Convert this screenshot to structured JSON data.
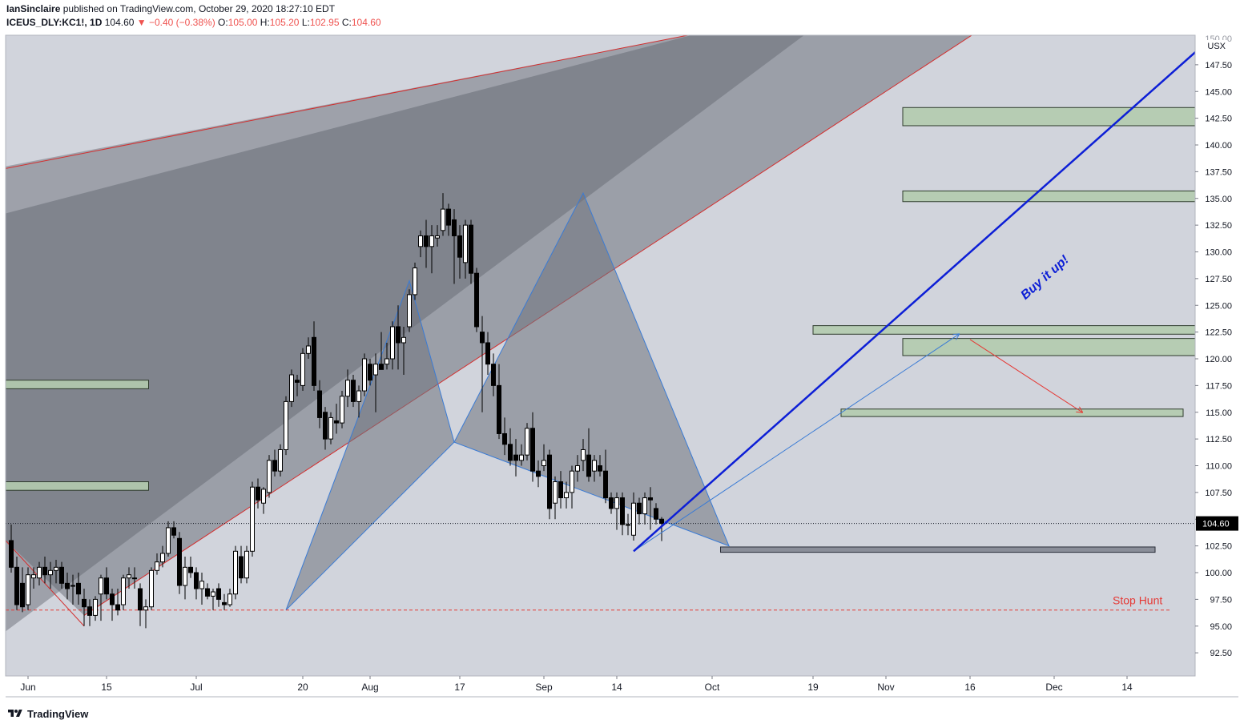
{
  "header": {
    "author": "IanSinclaire",
    "published_text": "published on TradingView.com, October 29, 2020 18:27:10 EDT",
    "symbol": "ICEUS_DLY:KC1!, 1D",
    "last": "104.60",
    "change": "▼ −0.40 (−0.38%)",
    "o_label": "O:",
    "o_value": "105.00",
    "h_label": "H:",
    "h_value": "105.20",
    "l_label": "L:",
    "l_value": "102.95",
    "c_label": "C:",
    "c_value": "104.60"
  },
  "footer": {
    "brand": "TradingView"
  },
  "colors": {
    "plot_bg": "#d1d4dc",
    "harmonic_fill": "#6f737e",
    "channel_line": "#d32f2f",
    "zone_fill": "#b3cbae",
    "zone_border": "#2e3b2c",
    "pattern_line": "#3a7bd5",
    "buy_line": "#0d1fd6",
    "stop_line": "#e53935",
    "candle_up": "#ffffff",
    "candle_down": "#000000",
    "price_tag_bg": "#000000"
  },
  "chart_data": {
    "type": "candlestick",
    "title": "ICEUS_DLY:KC1!, 1D",
    "currency": "USX",
    "ylim": [
      90.8,
      150.0
    ],
    "y_ticks": [
      92.5,
      95.0,
      97.5,
      100.0,
      102.5,
      105.0,
      107.5,
      110.0,
      112.5,
      115.0,
      117.5,
      120.0,
      122.5,
      125.0,
      127.5,
      130.0,
      132.5,
      135.0,
      137.5,
      140.0,
      142.5,
      145.0,
      147.5
    ],
    "top_tick_label": "150.00",
    "x_ticks": [
      {
        "label": "Jun",
        "day": 1
      },
      {
        "label": "15",
        "day": 15
      },
      {
        "label": "Jul",
        "day": 31
      },
      {
        "label": "20",
        "day": 50
      },
      {
        "label": "Aug",
        "day": 62
      },
      {
        "label": "17",
        "day": 78
      },
      {
        "label": "Sep",
        "day": 93
      },
      {
        "label": "14",
        "day": 106
      },
      {
        "label": "Oct",
        "day": 123
      },
      {
        "label": "19",
        "day": 141
      },
      {
        "label": "Nov",
        "day": 154
      },
      {
        "label": "16",
        "day": 169
      },
      {
        "label": "Dec",
        "day": 184
      },
      {
        "label": "14",
        "day": 197
      }
    ],
    "candles": [
      {
        "day": -2,
        "o": 103.0,
        "h": 104.5,
        "l": 100.0,
        "c": 100.5
      },
      {
        "day": -1,
        "o": 100.5,
        "h": 101.5,
        "l": 96.5,
        "c": 97.0
      },
      {
        "day": 0,
        "o": 99.0,
        "h": 100.5,
        "l": 96.3,
        "c": 96.8
      },
      {
        "day": 1,
        "o": 97.0,
        "h": 100.5,
        "l": 96.5,
        "c": 99.8
      },
      {
        "day": 2,
        "o": 99.5,
        "h": 100.5,
        "l": 98.5,
        "c": 99.8
      },
      {
        "day": 3,
        "o": 99.5,
        "h": 101.0,
        "l": 98.8,
        "c": 100.5
      },
      {
        "day": 4,
        "o": 100.5,
        "h": 101.5,
        "l": 99.0,
        "c": 99.8
      },
      {
        "day": 5,
        "o": 99.8,
        "h": 101.0,
        "l": 98.5,
        "c": 100.2
      },
      {
        "day": 6,
        "o": 100.2,
        "h": 101.2,
        "l": 99.0,
        "c": 100.5
      },
      {
        "day": 7,
        "o": 100.5,
        "h": 101.0,
        "l": 98.5,
        "c": 99.0
      },
      {
        "day": 8,
        "o": 99.0,
        "h": 100.0,
        "l": 97.5,
        "c": 98.5
      },
      {
        "day": 9,
        "o": 98.8,
        "h": 99.8,
        "l": 97.0,
        "c": 98.8
      },
      {
        "day": 10,
        "o": 99.0,
        "h": 100.0,
        "l": 97.0,
        "c": 98.0
      },
      {
        "day": 11,
        "o": 97.5,
        "h": 98.5,
        "l": 95.0,
        "c": 96.8
      },
      {
        "day": 12,
        "o": 96.8,
        "h": 97.5,
        "l": 95.0,
        "c": 96.0
      },
      {
        "day": 13,
        "o": 96.0,
        "h": 97.8,
        "l": 95.5,
        "c": 97.5
      },
      {
        "day": 14,
        "o": 98.0,
        "h": 99.8,
        "l": 95.5,
        "c": 99.5
      },
      {
        "day": 15,
        "o": 99.5,
        "h": 100.5,
        "l": 97.5,
        "c": 98.0
      },
      {
        "day": 16,
        "o": 98.0,
        "h": 98.5,
        "l": 95.5,
        "c": 97.0
      },
      {
        "day": 17,
        "o": 97.0,
        "h": 98.5,
        "l": 96.0,
        "c": 96.5
      },
      {
        "day": 18,
        "o": 97.0,
        "h": 99.8,
        "l": 96.5,
        "c": 99.5
      },
      {
        "day": 19,
        "o": 99.5,
        "h": 100.5,
        "l": 98.5,
        "c": 99.8
      },
      {
        "day": 20,
        "o": 99.5,
        "h": 100.5,
        "l": 98.5,
        "c": 99.5
      },
      {
        "day": 21,
        "o": 98.5,
        "h": 99.0,
        "l": 95.0,
        "c": 96.5
      },
      {
        "day": 22,
        "o": 96.5,
        "h": 97.5,
        "l": 94.8,
        "c": 96.8
      },
      {
        "day": 23,
        "o": 96.8,
        "h": 100.5,
        "l": 96.5,
        "c": 100.2
      },
      {
        "day": 24,
        "o": 100.2,
        "h": 101.8,
        "l": 99.8,
        "c": 101.0
      },
      {
        "day": 25,
        "o": 101.0,
        "h": 102.5,
        "l": 100.5,
        "c": 101.8
      },
      {
        "day": 26,
        "o": 101.8,
        "h": 104.8,
        "l": 101.5,
        "c": 104.2
      },
      {
        "day": 27,
        "o": 104.2,
        "h": 104.8,
        "l": 103.2,
        "c": 103.5
      },
      {
        "day": 28,
        "o": 103.2,
        "h": 103.8,
        "l": 98.0,
        "c": 98.8
      },
      {
        "day": 29,
        "o": 98.8,
        "h": 101.5,
        "l": 97.5,
        "c": 100.5
      },
      {
        "day": 30,
        "o": 100.5,
        "h": 101.5,
        "l": 99.5,
        "c": 100.0
      },
      {
        "day": 31,
        "o": 100.0,
        "h": 100.5,
        "l": 97.5,
        "c": 98.5
      },
      {
        "day": 32,
        "o": 98.5,
        "h": 100.0,
        "l": 97.0,
        "c": 99.2
      },
      {
        "day": 33,
        "o": 98.5,
        "h": 99.0,
        "l": 97.5,
        "c": 97.8
      },
      {
        "day": 34,
        "o": 97.8,
        "h": 98.5,
        "l": 96.5,
        "c": 98.2
      },
      {
        "day": 35,
        "o": 98.5,
        "h": 99.0,
        "l": 96.8,
        "c": 97.5
      },
      {
        "day": 36,
        "o": 97.2,
        "h": 98.0,
        "l": 96.5,
        "c": 97.0
      },
      {
        "day": 37,
        "o": 97.0,
        "h": 98.5,
        "l": 96.8,
        "c": 98.0
      },
      {
        "day": 38,
        "o": 98.0,
        "h": 102.5,
        "l": 97.5,
        "c": 102.0
      },
      {
        "day": 39,
        "o": 101.5,
        "h": 102.5,
        "l": 99.0,
        "c": 99.5
      },
      {
        "day": 40,
        "o": 99.5,
        "h": 102.5,
        "l": 99.0,
        "c": 102.0
      },
      {
        "day": 41,
        "o": 102.0,
        "h": 108.5,
        "l": 101.5,
        "c": 108.0
      },
      {
        "day": 42,
        "o": 108.0,
        "h": 108.8,
        "l": 106.0,
        "c": 106.8
      },
      {
        "day": 43,
        "o": 106.5,
        "h": 108.0,
        "l": 105.5,
        "c": 107.8
      },
      {
        "day": 44,
        "o": 107.5,
        "h": 111.0,
        "l": 107.0,
        "c": 110.5
      },
      {
        "day": 45,
        "o": 110.5,
        "h": 111.5,
        "l": 109.0,
        "c": 109.5
      },
      {
        "day": 46,
        "o": 109.5,
        "h": 112.0,
        "l": 109.0,
        "c": 111.5
      },
      {
        "day": 47,
        "o": 111.5,
        "h": 116.5,
        "l": 111.0,
        "c": 116.0
      },
      {
        "day": 48,
        "o": 116.0,
        "h": 119.0,
        "l": 115.5,
        "c": 118.5
      },
      {
        "day": 49,
        "o": 118.0,
        "h": 118.5,
        "l": 116.5,
        "c": 117.8
      },
      {
        "day": 50,
        "o": 117.5,
        "h": 121.0,
        "l": 117.0,
        "c": 120.5
      },
      {
        "day": 51,
        "o": 120.5,
        "h": 122.0,
        "l": 120.0,
        "c": 121.2
      },
      {
        "day": 52,
        "o": 122.0,
        "h": 123.5,
        "l": 117.0,
        "c": 117.5
      },
      {
        "day": 53,
        "o": 117.0,
        "h": 118.0,
        "l": 113.5,
        "c": 114.5
      },
      {
        "day": 54,
        "o": 115.0,
        "h": 115.5,
        "l": 111.5,
        "c": 112.5
      },
      {
        "day": 55,
        "o": 112.5,
        "h": 115.0,
        "l": 112.0,
        "c": 114.5
      },
      {
        "day": 56,
        "o": 114.2,
        "h": 115.8,
        "l": 113.0,
        "c": 114.0
      },
      {
        "day": 57,
        "o": 114.0,
        "h": 117.0,
        "l": 113.5,
        "c": 116.5
      },
      {
        "day": 58,
        "o": 116.5,
        "h": 119.0,
        "l": 115.5,
        "c": 118.0
      },
      {
        "day": 59,
        "o": 118.0,
        "h": 118.5,
        "l": 115.5,
        "c": 116.0
      },
      {
        "day": 60,
        "o": 116.0,
        "h": 117.5,
        "l": 114.5,
        "c": 117.0
      },
      {
        "day": 61,
        "o": 117.0,
        "h": 120.5,
        "l": 116.5,
        "c": 120.0
      },
      {
        "day": 62,
        "o": 119.5,
        "h": 120.0,
        "l": 117.5,
        "c": 118.0
      },
      {
        "day": 63,
        "o": 118.5,
        "h": 120.5,
        "l": 115.0,
        "c": 119.5
      },
      {
        "day": 64,
        "o": 119.5,
        "h": 122.5,
        "l": 119.0,
        "c": 119.0
      },
      {
        "day": 65,
        "o": 119.5,
        "h": 121.5,
        "l": 119.0,
        "c": 120.0
      },
      {
        "day": 66,
        "o": 120.0,
        "h": 123.5,
        "l": 119.0,
        "c": 123.0
      },
      {
        "day": 67,
        "o": 123.0,
        "h": 125.0,
        "l": 119.0,
        "c": 121.5
      },
      {
        "day": 68,
        "o": 121.5,
        "h": 123.0,
        "l": 118.5,
        "c": 122.0
      },
      {
        "day": 69,
        "o": 123.0,
        "h": 126.5,
        "l": 122.5,
        "c": 126.0
      },
      {
        "day": 70,
        "o": 126.0,
        "h": 129.0,
        "l": 125.5,
        "c": 128.5
      },
      {
        "day": 71,
        "o": 130.5,
        "h": 132.0,
        "l": 129.5,
        "c": 131.5
      },
      {
        "day": 72,
        "o": 131.5,
        "h": 133.0,
        "l": 128.5,
        "c": 130.5
      },
      {
        "day": 73,
        "o": 130.5,
        "h": 132.5,
        "l": 128.0,
        "c": 131.5
      },
      {
        "day": 74,
        "o": 131.3,
        "h": 132.5,
        "l": 130.5,
        "c": 131.5
      },
      {
        "day": 75,
        "o": 132.0,
        "h": 135.5,
        "l": 131.5,
        "c": 134.0
      },
      {
        "day": 76,
        "o": 134.0,
        "h": 134.5,
        "l": 131.5,
        "c": 132.5
      },
      {
        "day": 77,
        "o": 133.0,
        "h": 134.0,
        "l": 127.0,
        "c": 131.5
      },
      {
        "day": 78,
        "o": 131.5,
        "h": 132.5,
        "l": 127.5,
        "c": 129.5
      },
      {
        "day": 79,
        "o": 129.0,
        "h": 133.0,
        "l": 127.5,
        "c": 132.5
      },
      {
        "day": 80,
        "o": 132.5,
        "h": 133.0,
        "l": 127.0,
        "c": 128.0
      },
      {
        "day": 81,
        "o": 128.0,
        "h": 128.5,
        "l": 122.5,
        "c": 123.0
      },
      {
        "day": 82,
        "o": 122.5,
        "h": 124.0,
        "l": 115.0,
        "c": 121.5
      },
      {
        "day": 83,
        "o": 121.5,
        "h": 122.5,
        "l": 118.5,
        "c": 119.5
      },
      {
        "day": 84,
        "o": 119.5,
        "h": 120.5,
        "l": 116.5,
        "c": 117.5
      },
      {
        "day": 85,
        "o": 117.5,
        "h": 119.5,
        "l": 112.5,
        "c": 113.0
      },
      {
        "day": 86,
        "o": 113.0,
        "h": 114.5,
        "l": 111.0,
        "c": 112.0
      },
      {
        "day": 87,
        "o": 112.0,
        "h": 113.5,
        "l": 110.0,
        "c": 110.5
      },
      {
        "day": 88,
        "o": 111.0,
        "h": 112.5,
        "l": 109.0,
        "c": 110.5
      },
      {
        "day": 89,
        "o": 110.5,
        "h": 112.0,
        "l": 110.0,
        "c": 111.0
      },
      {
        "day": 90,
        "o": 111.0,
        "h": 114.0,
        "l": 110.5,
        "c": 113.5
      },
      {
        "day": 91,
        "o": 113.5,
        "h": 115.0,
        "l": 108.5,
        "c": 109.5
      },
      {
        "day": 92,
        "o": 109.5,
        "h": 110.5,
        "l": 108.0,
        "c": 109.0
      },
      {
        "day": 93,
        "o": 110.0,
        "h": 112.0,
        "l": 109.5,
        "c": 110.5
      },
      {
        "day": 94,
        "o": 111.0,
        "h": 111.5,
        "l": 105.0,
        "c": 106.0
      },
      {
        "day": 95,
        "o": 106.5,
        "h": 109.0,
        "l": 105.0,
        "c": 108.5
      },
      {
        "day": 96,
        "o": 108.5,
        "h": 109.5,
        "l": 106.0,
        "c": 107.0
      },
      {
        "day": 97,
        "o": 107.0,
        "h": 108.5,
        "l": 106.0,
        "c": 107.5
      },
      {
        "day": 98,
        "o": 107.5,
        "h": 110.0,
        "l": 106.0,
        "c": 109.5
      },
      {
        "day": 99,
        "o": 109.5,
        "h": 111.0,
        "l": 108.5,
        "c": 110.0
      },
      {
        "day": 100,
        "o": 110.5,
        "h": 112.5,
        "l": 109.5,
        "c": 111.5
      },
      {
        "day": 101,
        "o": 111.0,
        "h": 113.5,
        "l": 108.5,
        "c": 109.0
      },
      {
        "day": 102,
        "o": 109.5,
        "h": 111.0,
        "l": 108.5,
        "c": 110.5
      },
      {
        "day": 103,
        "o": 110.0,
        "h": 111.0,
        "l": 109.0,
        "c": 109.5
      },
      {
        "day": 104,
        "o": 109.5,
        "h": 111.5,
        "l": 106.5,
        "c": 107.0
      },
      {
        "day": 105,
        "o": 107.0,
        "h": 107.5,
        "l": 105.5,
        "c": 106.0
      },
      {
        "day": 106,
        "o": 106.0,
        "h": 107.5,
        "l": 104.0,
        "c": 107.0
      },
      {
        "day": 107,
        "o": 107.0,
        "h": 107.5,
        "l": 103.5,
        "c": 104.5
      },
      {
        "day": 108,
        "o": 104.5,
        "h": 105.5,
        "l": 103.5,
        "c": 104.5
      },
      {
        "day": 109,
        "o": 103.5,
        "h": 107.5,
        "l": 103.0,
        "c": 106.5
      },
      {
        "day": 110,
        "o": 106.5,
        "h": 107.0,
        "l": 104.5,
        "c": 105.5
      },
      {
        "day": 111,
        "o": 105.5,
        "h": 107.5,
        "l": 104.5,
        "c": 107.0
      },
      {
        "day": 112,
        "o": 107.0,
        "h": 108.0,
        "l": 104.0,
        "c": 106.8
      },
      {
        "day": 113,
        "o": 106.0,
        "h": 106.5,
        "l": 104.5,
        "c": 105.0
      },
      {
        "day": 114,
        "o": 105.0,
        "h": 105.2,
        "l": 102.95,
        "c": 104.6
      }
    ],
    "last_price": 104.6,
    "last_price_label": "104.60",
    "annotations": [
      {
        "text": "Buy it up!",
        "type": "trend-arrow",
        "from": {
          "day": 109,
          "price": 102.0
        },
        "to": {
          "day": 212,
          "price": 150.0
        }
      },
      {
        "text": "Stop Hunt",
        "type": "horizontal-dashed",
        "price": 96.5
      },
      {
        "type": "target-zone",
        "price_low": 141.8,
        "price_high": 143.5
      },
      {
        "type": "target-zone",
        "price_low": 134.7,
        "price_high": 135.7
      },
      {
        "type": "target-zone",
        "price_low": 122.3,
        "price_high": 123.1
      },
      {
        "type": "target-zone",
        "price_low": 120.3,
        "price_high": 121.9
      },
      {
        "type": "target-zone",
        "price_low": 114.6,
        "price_high": 115.3
      },
      {
        "type": "target-zone",
        "price_low": 117.2,
        "price_high": 118.0
      },
      {
        "type": "target-zone",
        "price_low": 107.7,
        "price_high": 108.5
      },
      {
        "type": "support-zone",
        "price_low": 101.9,
        "price_high": 102.4
      }
    ]
  }
}
